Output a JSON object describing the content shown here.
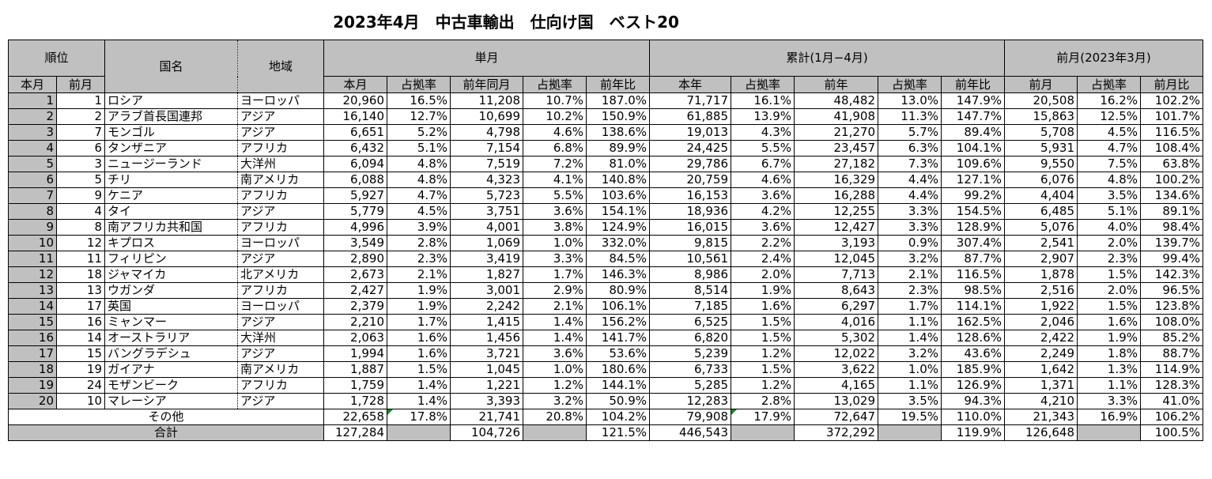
{
  "title": "2023年4月　中古車輸出　仕向け国　ベスト20",
  "headers": {
    "rank": "順位",
    "country": "国名",
    "region": "地域",
    "single_month": "単月",
    "cumulative": "累計(1月−4月)",
    "prev_month": "前月(2023年3月)",
    "rank_this": "本月",
    "rank_prev": "前月",
    "sub": [
      "本月",
      "占拠率",
      "前年同月",
      "占拠率",
      "前年比",
      "本年",
      "占拠率",
      "前年",
      "占拠率",
      "前年比",
      "前月",
      "占拠率",
      "前月比"
    ]
  },
  "chart_data": {
    "type": "table",
    "title": "2023年4月　中古車輸出　仕向け国　ベスト20",
    "rows": [
      {
        "rank": "1",
        "prev_rank": "1",
        "country": "ロシア",
        "region": "ヨーロッパ",
        "values": [
          "20,960",
          "16.5%",
          "11,208",
          "10.7%",
          "187.0%",
          "71,717",
          "16.1%",
          "48,482",
          "13.0%",
          "147.9%",
          "20,508",
          "16.2%",
          "102.2%"
        ]
      },
      {
        "rank": "2",
        "prev_rank": "2",
        "country": "アラブ首長国連邦",
        "region": "アジア",
        "values": [
          "16,140",
          "12.7%",
          "10,699",
          "10.2%",
          "150.9%",
          "61,885",
          "13.9%",
          "41,908",
          "11.3%",
          "147.7%",
          "15,863",
          "12.5%",
          "101.7%"
        ]
      },
      {
        "rank": "3",
        "prev_rank": "7",
        "country": "モンゴル",
        "region": "アジア",
        "values": [
          "6,651",
          "5.2%",
          "4,798",
          "4.6%",
          "138.6%",
          "19,013",
          "4.3%",
          "21,270",
          "5.7%",
          "89.4%",
          "5,708",
          "4.5%",
          "116.5%"
        ]
      },
      {
        "rank": "4",
        "prev_rank": "6",
        "country": "タンザニア",
        "region": "アフリカ",
        "values": [
          "6,432",
          "5.1%",
          "7,154",
          "6.8%",
          "89.9%",
          "24,425",
          "5.5%",
          "23,457",
          "6.3%",
          "104.1%",
          "5,931",
          "4.7%",
          "108.4%"
        ]
      },
      {
        "rank": "5",
        "prev_rank": "3",
        "country": "ニュージーランド",
        "region": "大洋州",
        "values": [
          "6,094",
          "4.8%",
          "7,519",
          "7.2%",
          "81.0%",
          "29,786",
          "6.7%",
          "27,182",
          "7.3%",
          "109.6%",
          "9,550",
          "7.5%",
          "63.8%"
        ]
      },
      {
        "rank": "6",
        "prev_rank": "5",
        "country": "チリ",
        "region": "南アメリカ",
        "values": [
          "6,088",
          "4.8%",
          "4,323",
          "4.1%",
          "140.8%",
          "20,759",
          "4.6%",
          "16,329",
          "4.4%",
          "127.1%",
          "6,076",
          "4.8%",
          "100.2%"
        ]
      },
      {
        "rank": "7",
        "prev_rank": "9",
        "country": "ケニア",
        "region": "アフリカ",
        "values": [
          "5,927",
          "4.7%",
          "5,723",
          "5.5%",
          "103.6%",
          "16,153",
          "3.6%",
          "16,288",
          "4.4%",
          "99.2%",
          "4,404",
          "3.5%",
          "134.6%"
        ]
      },
      {
        "rank": "8",
        "prev_rank": "4",
        "country": "タイ",
        "region": "アジア",
        "values": [
          "5,779",
          "4.5%",
          "3,751",
          "3.6%",
          "154.1%",
          "18,936",
          "4.2%",
          "12,255",
          "3.3%",
          "154.5%",
          "6,485",
          "5.1%",
          "89.1%"
        ]
      },
      {
        "rank": "9",
        "prev_rank": "8",
        "country": "南アフリカ共和国",
        "region": "アフリカ",
        "values": [
          "4,996",
          "3.9%",
          "4,001",
          "3.8%",
          "124.9%",
          "16,015",
          "3.6%",
          "12,427",
          "3.3%",
          "128.9%",
          "5,076",
          "4.0%",
          "98.4%"
        ]
      },
      {
        "rank": "10",
        "prev_rank": "12",
        "country": "キプロス",
        "region": "ヨーロッパ",
        "values": [
          "3,549",
          "2.8%",
          "1,069",
          "1.0%",
          "332.0%",
          "9,815",
          "2.2%",
          "3,193",
          "0.9%",
          "307.4%",
          "2,541",
          "2.0%",
          "139.7%"
        ]
      },
      {
        "rank": "11",
        "prev_rank": "11",
        "country": "フィリピン",
        "region": "アジア",
        "values": [
          "2,890",
          "2.3%",
          "3,419",
          "3.3%",
          "84.5%",
          "10,561",
          "2.4%",
          "12,045",
          "3.2%",
          "87.7%",
          "2,907",
          "2.3%",
          "99.4%"
        ]
      },
      {
        "rank": "12",
        "prev_rank": "18",
        "country": "ジャマイカ",
        "region": "北アメリカ",
        "values": [
          "2,673",
          "2.1%",
          "1,827",
          "1.7%",
          "146.3%",
          "8,986",
          "2.0%",
          "7,713",
          "2.1%",
          "116.5%",
          "1,878",
          "1.5%",
          "142.3%"
        ]
      },
      {
        "rank": "13",
        "prev_rank": "13",
        "country": "ウガンダ",
        "region": "アフリカ",
        "values": [
          "2,427",
          "1.9%",
          "3,001",
          "2.9%",
          "80.9%",
          "8,514",
          "1.9%",
          "8,643",
          "2.3%",
          "98.5%",
          "2,516",
          "2.0%",
          "96.5%"
        ]
      },
      {
        "rank": "14",
        "prev_rank": "17",
        "country": "英国",
        "region": "ヨーロッパ",
        "values": [
          "2,379",
          "1.9%",
          "2,242",
          "2.1%",
          "106.1%",
          "7,185",
          "1.6%",
          "6,297",
          "1.7%",
          "114.1%",
          "1,922",
          "1.5%",
          "123.8%"
        ]
      },
      {
        "rank": "15",
        "prev_rank": "16",
        "country": "ミャンマー",
        "region": "アジア",
        "values": [
          "2,210",
          "1.7%",
          "1,415",
          "1.4%",
          "156.2%",
          "6,525",
          "1.5%",
          "4,016",
          "1.1%",
          "162.5%",
          "2,046",
          "1.6%",
          "108.0%"
        ]
      },
      {
        "rank": "16",
        "prev_rank": "14",
        "country": "オーストラリア",
        "region": "大洋州",
        "values": [
          "2,063",
          "1.6%",
          "1,456",
          "1.4%",
          "141.7%",
          "6,820",
          "1.5%",
          "5,302",
          "1.4%",
          "128.6%",
          "2,422",
          "1.9%",
          "85.2%"
        ]
      },
      {
        "rank": "17",
        "prev_rank": "15",
        "country": "バングラデシュ",
        "region": "アジア",
        "values": [
          "1,994",
          "1.6%",
          "3,721",
          "3.6%",
          "53.6%",
          "5,239",
          "1.2%",
          "12,022",
          "3.2%",
          "43.6%",
          "2,249",
          "1.8%",
          "88.7%"
        ]
      },
      {
        "rank": "18",
        "prev_rank": "19",
        "country": "ガイアナ",
        "region": "南アメリカ",
        "values": [
          "1,887",
          "1.5%",
          "1,045",
          "1.0%",
          "180.6%",
          "6,733",
          "1.5%",
          "3,622",
          "1.0%",
          "185.9%",
          "1,642",
          "1.3%",
          "114.9%"
        ]
      },
      {
        "rank": "19",
        "prev_rank": "24",
        "country": "モザンビーク",
        "region": "アフリカ",
        "values": [
          "1,759",
          "1.4%",
          "1,221",
          "1.2%",
          "144.1%",
          "5,285",
          "1.2%",
          "4,165",
          "1.1%",
          "126.9%",
          "1,371",
          "1.1%",
          "128.3%"
        ]
      },
      {
        "rank": "20",
        "prev_rank": "10",
        "country": "マレーシア",
        "region": "アジア",
        "values": [
          "1,728",
          "1.4%",
          "3,393",
          "3.2%",
          "50.9%",
          "12,283",
          "2.8%",
          "13,029",
          "3.5%",
          "94.3%",
          "4,210",
          "3.3%",
          "41.0%"
        ]
      }
    ],
    "other": {
      "label": "その他",
      "values": [
        "22,658",
        "17.8%",
        "21,741",
        "20.8%",
        "104.2%",
        "79,908",
        "17.9%",
        "72,647",
        "19.5%",
        "110.0%",
        "21,343",
        "16.9%",
        "106.2%"
      ]
    },
    "total": {
      "label": "合計",
      "values": [
        "127,284",
        "",
        "104,726",
        "",
        "121.5%",
        "446,543",
        "",
        "372,292",
        "",
        "119.9%",
        "126,648",
        "",
        "100.5%"
      ]
    }
  }
}
